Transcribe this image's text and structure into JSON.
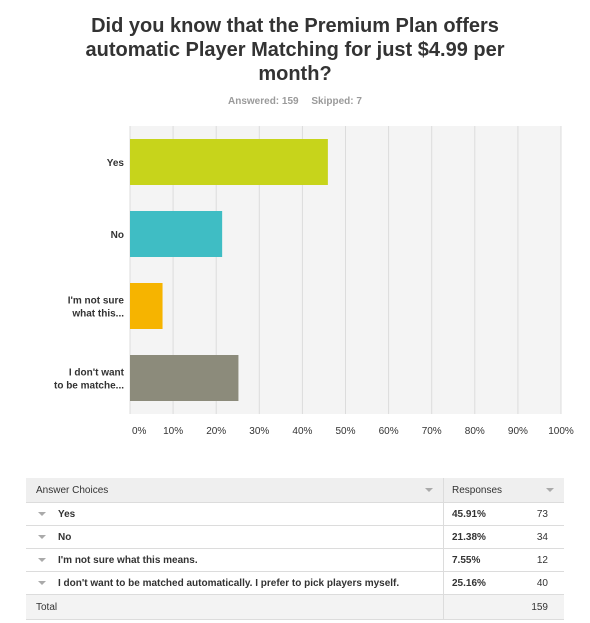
{
  "question": {
    "title": "Did you know that the Premium Plan offers automatic Player Matching for just $4.99 per month?",
    "answered": "Answered: 159",
    "skipped": "Skipped: 7"
  },
  "chart_data": {
    "type": "bar",
    "orientation": "horizontal",
    "categories": [
      "Yes",
      "No",
      "I'm not sure what this...",
      "I don't want to be matche..."
    ],
    "category_lines": [
      [
        "Yes"
      ],
      [
        "No"
      ],
      [
        "I'm not sure",
        "what this..."
      ],
      [
        "I don't want",
        "to be matche..."
      ]
    ],
    "values": [
      45.91,
      21.38,
      7.55,
      25.16
    ],
    "colors": [
      "#c7d41b",
      "#3fbdc4",
      "#f6b400",
      "#8c8b7b"
    ],
    "xlim": [
      0,
      100
    ],
    "ticks": [
      "0%",
      "10%",
      "20%",
      "30%",
      "40%",
      "50%",
      "60%",
      "70%",
      "80%",
      "90%",
      "100%"
    ],
    "grid": true,
    "title": "",
    "xlabel": "",
    "ylabel": ""
  },
  "table": {
    "header_choice": "Answer Choices",
    "header_responses": "Responses",
    "rows": [
      {
        "choice": "Yes",
        "percent": "45.91%",
        "count": "73"
      },
      {
        "choice": "No",
        "percent": "21.38%",
        "count": "34"
      },
      {
        "choice": "I'm not sure what this means.",
        "percent": "7.55%",
        "count": "12"
      },
      {
        "choice": "I don't want to be matched automatically. I prefer to pick players myself.",
        "percent": "25.16%",
        "count": "40"
      }
    ],
    "total_label": "Total",
    "total_count": "159"
  }
}
